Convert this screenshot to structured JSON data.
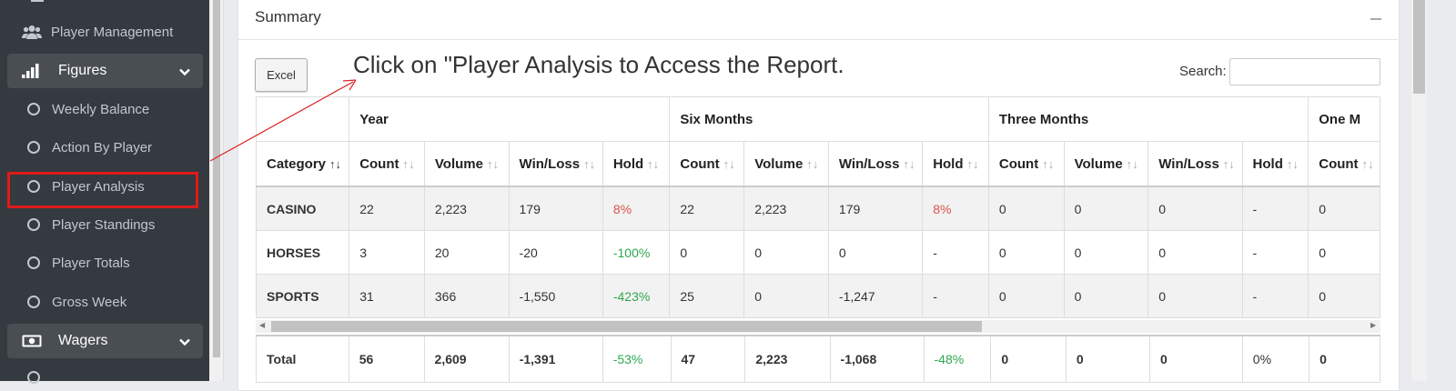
{
  "sidebar": {
    "items": [
      {
        "label": "Player Management",
        "icon": "users-icon"
      },
      {
        "label": "Figures",
        "icon": "signal-bars-icon",
        "group": true
      },
      {
        "label": "Weekly Balance"
      },
      {
        "label": "Action By Player"
      },
      {
        "label": "Player Analysis"
      },
      {
        "label": "Player Standings"
      },
      {
        "label": "Player Totals"
      },
      {
        "label": "Gross Week"
      },
      {
        "label": "Wagers",
        "icon": "money-icon",
        "group": true
      }
    ]
  },
  "card": {
    "title": "Summary",
    "excel_label": "Excel",
    "search_label": "Search:",
    "search_value": ""
  },
  "annotation": "Click on \"Player Analysis to Access the Report.",
  "colors": {
    "highlight": "#e01b1b",
    "sidebar": "#343a40",
    "negative": "#d9534f",
    "positive": "#2fa84f"
  },
  "table": {
    "groups": [
      "Year",
      "Six Months",
      "Three Months",
      "One M"
    ],
    "headers": [
      "Category",
      "Count",
      "Volume",
      "Win/Loss",
      "Hold",
      "Count",
      "Volume",
      "Win/Loss",
      "Hold",
      "Count",
      "Volume",
      "Win/Loss",
      "Hold",
      "Count"
    ],
    "rows": [
      [
        "CASINO",
        "22",
        "2,223",
        "179",
        "8%",
        "22",
        "2,223",
        "179",
        "8%",
        "0",
        "0",
        "0",
        "-",
        "0"
      ],
      [
        "HORSES",
        "3",
        "20",
        "-20",
        "-100%",
        "0",
        "0",
        "0",
        "-",
        "0",
        "0",
        "0",
        "-",
        "0"
      ],
      [
        "SPORTS",
        "31",
        "366",
        "-1,550",
        "-423%",
        "25",
        "0",
        "-1,247",
        "-",
        "0",
        "0",
        "0",
        "-",
        "0"
      ]
    ],
    "footer": [
      "Total",
      "56",
      "2,609",
      "-1,391",
      "-53%",
      "47",
      "2,223",
      "-1,068",
      "-48%",
      "0",
      "0",
      "0",
      "0%",
      "0"
    ]
  }
}
